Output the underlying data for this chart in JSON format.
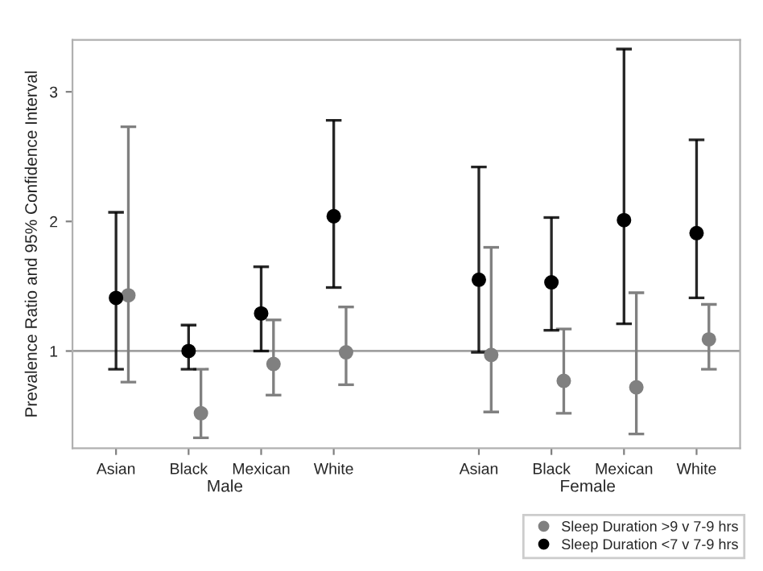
{
  "chart_data": {
    "type": "scatter",
    "ylabel": "Prevalence Ratio and 95% Confidence Interval",
    "categories": [
      "Asian",
      "Black",
      "Mexican",
      "White",
      null,
      "Asian",
      "Black",
      "Mexican",
      "White"
    ],
    "annotations": [
      "Male",
      "Female"
    ],
    "series": [
      {
        "name": "Sleep Duration >9 v 7-9 hrs",
        "color": "#808080",
        "values": [
          1.43,
          0.52,
          0.9,
          0.99,
          null,
          0.97,
          0.77,
          0.72,
          1.09
        ],
        "errors": [
          [
            0.76,
            2.73
          ],
          [
            0.33,
            0.86
          ],
          [
            0.66,
            1.24
          ],
          [
            0.74,
            1.34
          ],
          null,
          [
            0.53,
            1.8
          ],
          [
            0.52,
            1.17
          ],
          [
            0.36,
            1.45
          ],
          [
            0.86,
            1.36
          ]
        ]
      },
      {
        "name": "Sleep Duration <7 v 7-9 hrs",
        "color": "#000000",
        "values": [
          1.41,
          1.0,
          1.29,
          2.04,
          null,
          1.55,
          1.53,
          2.01,
          1.91
        ],
        "errors": [
          [
            0.86,
            2.07
          ],
          [
            0.86,
            1.2
          ],
          [
            1.0,
            1.65
          ],
          [
            1.49,
            2.78
          ],
          null,
          [
            0.99,
            2.42
          ],
          [
            1.16,
            2.03
          ],
          [
            1.21,
            3.33
          ],
          [
            1.41,
            2.63
          ]
        ]
      }
    ],
    "ylim": [
      0.25,
      3.4
    ],
    "yticks": [
      1,
      2,
      3
    ],
    "ref_lines": [
      {
        "axis": "y",
        "value": 1,
        "color": "#a0a0a0"
      }
    ],
    "grid": false,
    "legend": "bottom right",
    "marker": "circle"
  }
}
